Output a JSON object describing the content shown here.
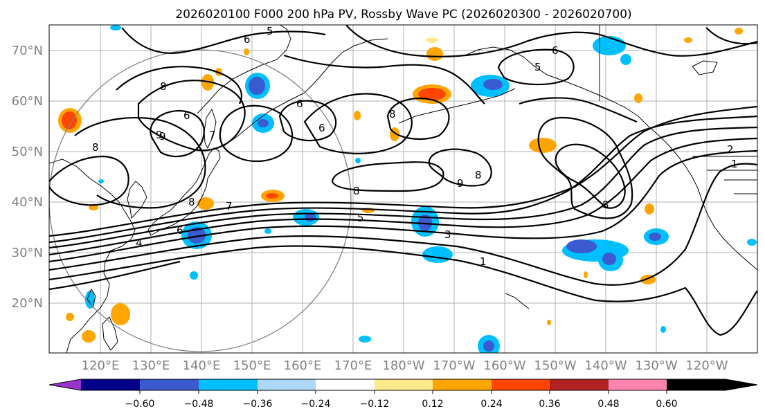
{
  "title": "2026020100 F000 200 hPa PV, Rossby Wave PC (2026020300 - 2026020700)",
  "map": {
    "lat_labels": [
      "70°N",
      "60°N",
      "50°N",
      "40°N",
      "30°N",
      "20°N"
    ],
    "lon_labels": [
      "120°E",
      "130°E",
      "140°E",
      "150°E",
      "160°E",
      "170°E",
      "180°W",
      "170°W",
      "160°W",
      "150°W",
      "140°W",
      "130°W",
      "120°W"
    ],
    "contour_labels": [
      "5",
      "6",
      "8",
      "9",
      "8",
      "6",
      "7",
      "6",
      "8",
      "6",
      "9",
      "8",
      "8",
      "8",
      "7",
      "5",
      "3",
      "1",
      "4",
      "6",
      "2",
      "1",
      "6",
      "9",
      "5",
      "8"
    ]
  },
  "colorbar": {
    "colors": [
      "#9932cc",
      "#00008b",
      "#3a5bd0",
      "#00bfff",
      "#add8f7",
      "#ffffff",
      "#ffe98a",
      "#ffa500",
      "#ff4500",
      "#b22222",
      "#ff85b0"
    ],
    "tick_labels": [
      "−0.60",
      "−0.48",
      "−0.36",
      "−0.24",
      "−0.12",
      "0.12",
      "0.24",
      "0.36",
      "0.48",
      "0.60"
    ]
  }
}
